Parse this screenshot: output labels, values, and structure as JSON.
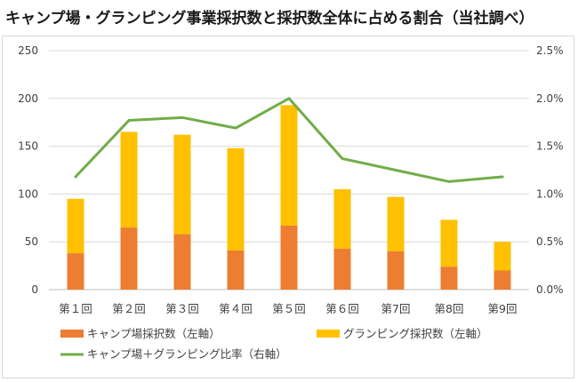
{
  "title": "キャンプ場・グランピング事業採択数と採択数全体に占める割合（当社調べ）",
  "colors": {
    "camp": "#ED7D31",
    "glamping": "#FFC000",
    "ratio": "#70AD47",
    "grid": "#d9d9d9",
    "axis": "#bfbfbf"
  },
  "chart_data": {
    "type": "bar",
    "stacked": true,
    "categories": [
      "第１回",
      "第２回",
      "第３回",
      "第４回",
      "第５回",
      "第６回",
      "第7回",
      "第8回",
      "第9回"
    ],
    "series": [
      {
        "name": "キャンプ場採択数（左軸）",
        "type": "bar",
        "axis": "left",
        "values": [
          38,
          65,
          58,
          41,
          67,
          43,
          40,
          24,
          20
        ]
      },
      {
        "name": "グランピング採択数（左軸）",
        "type": "bar",
        "axis": "left",
        "values": [
          57,
          100,
          104,
          107,
          126,
          62,
          57,
          49,
          30
        ]
      },
      {
        "name": "キャンプ場＋グランピング比率（右軸）",
        "type": "line",
        "axis": "right",
        "values": [
          1.18,
          1.77,
          1.8,
          1.69,
          2.0,
          1.37,
          1.25,
          1.13,
          1.18
        ]
      }
    ],
    "y_left": {
      "ylim": [
        0,
        250
      ],
      "ticks": [
        "0",
        "50",
        "100",
        "150",
        "200",
        "250"
      ]
    },
    "y_right": {
      "ylim": [
        0,
        2.5
      ],
      "ticks": [
        "0.0%",
        "0.5%",
        "1.0%",
        "1.5%",
        "2.0%",
        "2.5%"
      ]
    },
    "grid": true,
    "legend": "bottom"
  }
}
